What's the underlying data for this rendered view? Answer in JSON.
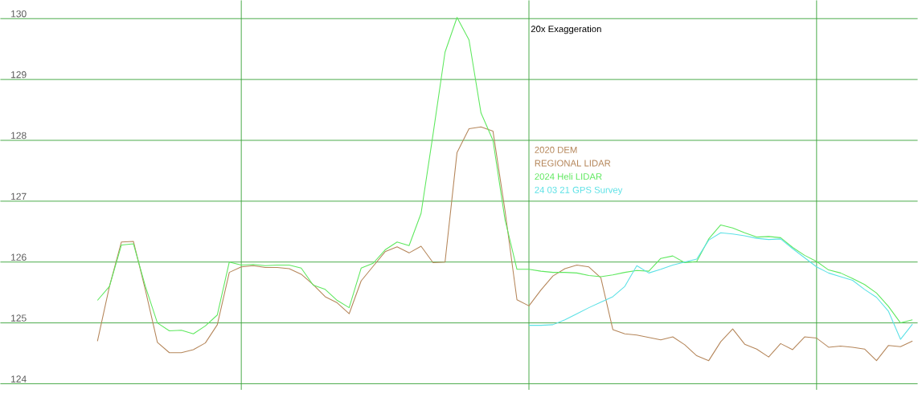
{
  "chart_data": {
    "type": "line",
    "annotations": [
      "20x Exaggeration",
      "REGIONAL LIDAR"
    ],
    "categories": [
      null,
      null,
      null,
      null,
      null,
      null,
      null,
      null,
      null,
      null,
      null,
      null,
      null,
      null,
      null,
      null,
      null,
      null,
      null,
      null,
      null,
      null,
      null,
      null,
      null,
      null,
      null,
      null,
      null,
      null,
      null,
      null,
      null,
      null,
      null,
      null,
      null,
      null,
      null,
      null,
      null,
      null,
      null,
      null,
      null,
      null,
      null,
      null,
      null,
      null,
      null,
      null,
      null,
      null,
      null,
      null,
      null,
      null,
      null,
      null,
      null,
      null,
      null,
      null,
      null,
      null,
      null,
      null,
      null,
      null,
      null,
      null,
      null,
      null,
      null,
      null
    ],
    "ylim": [
      123.9,
      130.3
    ],
    "yticks": [
      124,
      125,
      126,
      127,
      128,
      129,
      130
    ],
    "tick_labels": "y",
    "grid": true,
    "marker": "none",
    "line_style": "solid",
    "series": [
      {
        "name": "2020 DEM",
        "color": "#b5865a",
        "values": [
          null,
          null,
          null,
          null,
          null,
          null,
          null,
          124.7,
          125.6,
          126.33,
          126.34,
          125.54,
          124.68,
          124.51,
          124.51,
          124.56,
          124.67,
          124.97,
          125.83,
          125.92,
          125.94,
          125.91,
          125.91,
          125.89,
          125.8,
          125.63,
          125.43,
          125.33,
          125.15,
          125.69,
          125.93,
          126.17,
          126.25,
          126.15,
          126.26,
          125.99,
          126.0,
          127.8,
          128.19,
          128.22,
          128.15,
          126.85,
          125.38,
          125.28,
          125.54,
          125.77,
          125.89,
          125.95,
          125.92,
          125.74,
          124.89,
          124.82,
          124.8,
          124.76,
          124.72,
          124.77,
          124.64,
          124.46,
          124.38,
          124.69,
          124.9,
          124.65,
          124.57,
          124.44,
          124.66,
          124.56,
          124.77,
          124.75,
          124.6,
          124.62,
          124.6,
          124.57,
          124.38,
          124.63,
          124.61,
          124.7
        ]
      },
      {
        "name": "2024 Heli LIDAR",
        "color": "#5ee85e",
        "values": [
          null,
          null,
          null,
          null,
          null,
          null,
          null,
          125.37,
          125.6,
          126.28,
          126.3,
          125.6,
          125.0,
          124.87,
          124.88,
          124.82,
          124.95,
          125.13,
          126.0,
          125.95,
          125.96,
          125.94,
          125.95,
          125.95,
          125.9,
          125.62,
          125.55,
          125.37,
          125.25,
          125.9,
          125.98,
          126.2,
          126.33,
          126.27,
          126.8,
          128.1,
          129.45,
          130.02,
          129.65,
          128.45,
          128.0,
          126.7,
          125.88,
          125.88,
          125.85,
          125.83,
          125.83,
          125.82,
          125.78,
          125.76,
          125.79,
          125.83,
          125.86,
          125.85,
          126.06,
          126.1,
          125.99,
          126.01,
          126.38,
          126.61,
          126.56,
          126.48,
          126.41,
          126.42,
          126.4,
          126.24,
          126.11,
          126.01,
          125.87,
          125.82,
          125.73,
          125.63,
          125.49,
          125.27,
          125.0,
          125.05
        ]
      },
      {
        "name": "24 03 21 GPS Survey",
        "color": "#5ce1e6",
        "values": [
          null,
          null,
          null,
          null,
          null,
          null,
          null,
          null,
          null,
          null,
          null,
          null,
          null,
          null,
          null,
          null,
          null,
          null,
          null,
          null,
          null,
          null,
          null,
          null,
          null,
          null,
          null,
          null,
          null,
          null,
          null,
          null,
          null,
          null,
          null,
          null,
          null,
          null,
          null,
          null,
          null,
          null,
          null,
          124.96,
          124.96,
          124.97,
          125.05,
          125.15,
          125.25,
          125.34,
          125.43,
          125.6,
          125.94,
          125.82,
          125.88,
          125.95,
          126.0,
          126.05,
          126.36,
          126.48,
          126.46,
          126.43,
          126.39,
          126.37,
          126.38,
          126.22,
          126.07,
          125.92,
          125.82,
          125.76,
          125.7,
          125.55,
          125.42,
          125.19,
          124.73,
          124.98
        ]
      }
    ]
  }
}
